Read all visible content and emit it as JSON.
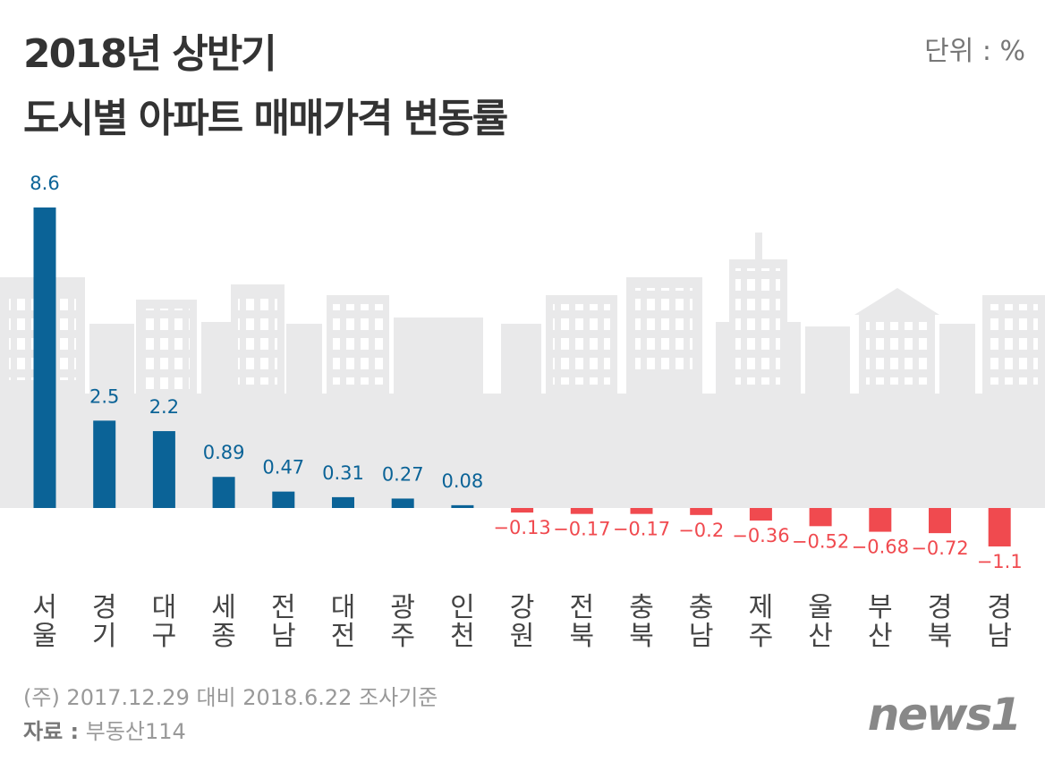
{
  "title": [
    "2018년 상반기",
    "도시별 아파트 매매가격 변동률"
  ],
  "unit": "단위 : %",
  "note": "(주) 2017.12.29 대비 2018.6.22 조사기준",
  "source_label": "자료 :",
  "source": "부동산114",
  "logo": "news1",
  "chart_data": {
    "type": "bar",
    "categories": [
      "서울",
      "경기",
      "대구",
      "세종",
      "전남",
      "대전",
      "광주",
      "인천",
      "강원",
      "전북",
      "충북",
      "충남",
      "제주",
      "울산",
      "부산",
      "경북",
      "경남"
    ],
    "values": [
      8.6,
      2.5,
      2.2,
      0.89,
      0.47,
      0.31,
      0.27,
      0.08,
      -0.13,
      -0.17,
      -0.17,
      -0.2,
      -0.36,
      -0.52,
      -0.68,
      -0.72,
      -1.1
    ],
    "value_labels": [
      "8.6",
      "2.5",
      "2.2",
      "0.89",
      "0.47",
      "0.31",
      "0.27",
      "0.08",
      "−0.13",
      "−0.17",
      "−0.17",
      "−0.2",
      "−0.36",
      "−0.52",
      "−0.68",
      "−0.72",
      "−1.1"
    ],
    "positive_color": "#0b6397",
    "negative_color": "#f04a4f"
  }
}
